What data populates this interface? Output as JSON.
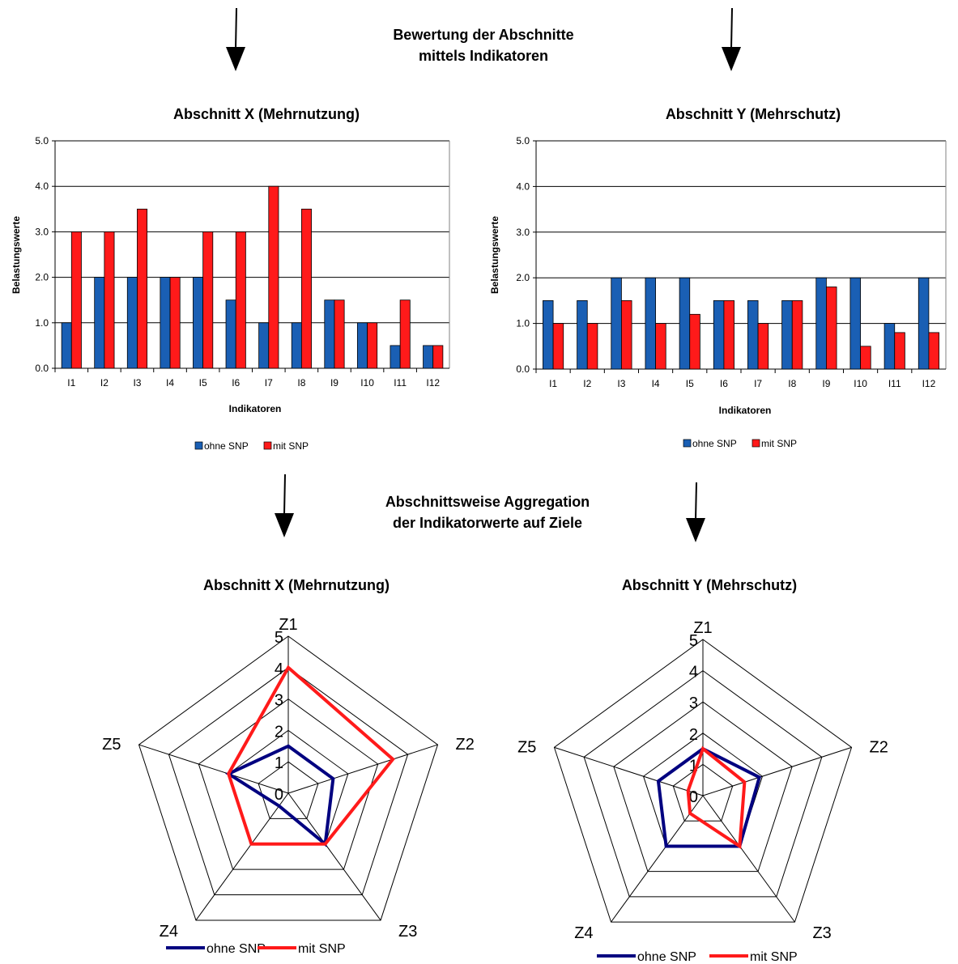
{
  "headings": {
    "top_line1": "Bewertung der Abschnitte",
    "top_line2": "mittels Indikatoren",
    "mid_line1": "Abschnittsweise Aggregation",
    "mid_line2": "der Indikatorwerte auf Ziele"
  },
  "colors": {
    "bar_ohne": "#1a5fb4",
    "bar_mit": "#ff1a1a",
    "line_ohne": "#000080",
    "line_mit": "#ff1a1a"
  },
  "chart_data": [
    {
      "type": "bar",
      "title": "Abschnitt X (Mehrnutzung)",
      "xlabel": "Indikatoren",
      "ylabel": "Belastungswerte",
      "ylim": [
        0,
        5
      ],
      "yticks": [
        "0.0",
        "1.0",
        "2.0",
        "3.0",
        "4.0",
        "5.0"
      ],
      "grid": true,
      "legend_position": "bottom",
      "categories": [
        "I1",
        "I2",
        "I3",
        "I4",
        "I5",
        "I6",
        "I7",
        "I8",
        "I9",
        "I10",
        "I11",
        "I12"
      ],
      "series": [
        {
          "name": "ohne SNP",
          "values": [
            1.0,
            2.0,
            2.0,
            2.0,
            2.0,
            1.5,
            1.0,
            1.0,
            1.5,
            1.0,
            0.5,
            0.5
          ]
        },
        {
          "name": "mit SNP",
          "values": [
            3.0,
            3.0,
            3.5,
            2.0,
            3.0,
            3.0,
            4.0,
            3.5,
            1.5,
            1.0,
            1.5,
            0.5
          ]
        }
      ]
    },
    {
      "type": "bar",
      "title": "Abschnitt Y (Mehrschutz)",
      "xlabel": "Indikatoren",
      "ylabel": "Belastungswerte",
      "ylim": [
        0,
        5
      ],
      "yticks": [
        "0.0",
        "1.0",
        "2.0",
        "3.0",
        "4.0",
        "5.0"
      ],
      "grid": true,
      "legend_position": "bottom",
      "categories": [
        "I1",
        "I2",
        "I3",
        "I4",
        "I5",
        "I6",
        "I7",
        "I8",
        "I9",
        "I10",
        "I11",
        "I12"
      ],
      "series": [
        {
          "name": "ohne SNP",
          "values": [
            1.5,
            1.5,
            2.0,
            2.0,
            2.0,
            1.5,
            1.5,
            1.5,
            2.0,
            2.0,
            1.0,
            2.0
          ]
        },
        {
          "name": "mit SNP",
          "values": [
            1.0,
            1.0,
            1.5,
            1.0,
            1.2,
            1.5,
            1.0,
            1.5,
            1.8,
            0.5,
            0.8,
            0.8
          ]
        }
      ]
    },
    {
      "type": "radar",
      "title": "Abschnitt X (Mehrnutzung)",
      "axes": [
        "Z1",
        "Z2",
        "Z3",
        "Z4",
        "Z5"
      ],
      "rlim": [
        0,
        5
      ],
      "rticks": [
        "0",
        "1",
        "2",
        "3",
        "4",
        "5"
      ],
      "legend_position": "bottom",
      "series": [
        {
          "name": "ohne SNP",
          "values": [
            1.5,
            1.5,
            2.0,
            0.5,
            2.0
          ]
        },
        {
          "name": "mit SNP",
          "values": [
            4.0,
            3.5,
            2.0,
            2.0,
            2.0
          ]
        }
      ]
    },
    {
      "type": "radar",
      "title": "Abschnitt Y (Mehrschutz)",
      "axes": [
        "Z1",
        "Z2",
        "Z3",
        "Z4",
        "Z5"
      ],
      "rlim": [
        0,
        5
      ],
      "rticks": [
        "0",
        "1",
        "2",
        "3",
        "4",
        "5"
      ],
      "legend_position": "bottom",
      "series": [
        {
          "name": "ohne SNP",
          "values": [
            1.5,
            1.9,
            2.0,
            2.0,
            1.5
          ]
        },
        {
          "name": "mit SNP",
          "values": [
            1.5,
            1.4,
            2.0,
            0.7,
            0.5
          ]
        }
      ]
    }
  ]
}
